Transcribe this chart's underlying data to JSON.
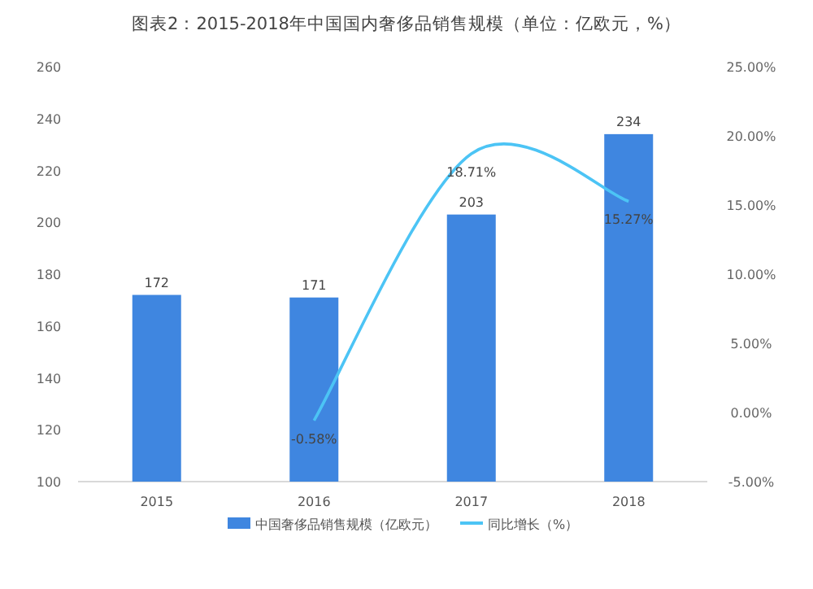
{
  "chart_data": {
    "type": "bar",
    "title": "图表2：2015-2018年中国国内奢侈品销售规模（单位：亿欧元，%）",
    "categories": [
      "2015",
      "2016",
      "2017",
      "2018"
    ],
    "series": [
      {
        "name": "中国奢侈品销售规模（亿欧元）",
        "color": "#3f86e0",
        "values": [
          172,
          171,
          203,
          234
        ],
        "value_labels": [
          "172",
          "171",
          "203",
          "234"
        ]
      },
      {
        "name": "同比增长（%）",
        "type": "line",
        "axis": "y2",
        "color": "#4cc4f5",
        "values": [
          null,
          -0.58,
          18.71,
          15.27
        ],
        "value_labels": [
          null,
          "-0.58%",
          "18.71%",
          "15.27%"
        ]
      }
    ],
    "ylim": [
      100,
      260
    ],
    "yticks": [
      100,
      120,
      140,
      160,
      180,
      200,
      220,
      240,
      260
    ],
    "y2lim": [
      -5,
      25
    ],
    "y2ticks": [
      {
        "value": -5,
        "label": "-5.00%"
      },
      {
        "value": 0,
        "label": "0.00%"
      },
      {
        "value": 5,
        "label": "5.00%"
      },
      {
        "value": 10,
        "label": "10.00%"
      },
      {
        "value": 15,
        "label": "15.00%"
      },
      {
        "value": 20,
        "label": "20.00%"
      },
      {
        "value": 25,
        "label": "25.00%"
      }
    ],
    "legend": "bottom"
  }
}
